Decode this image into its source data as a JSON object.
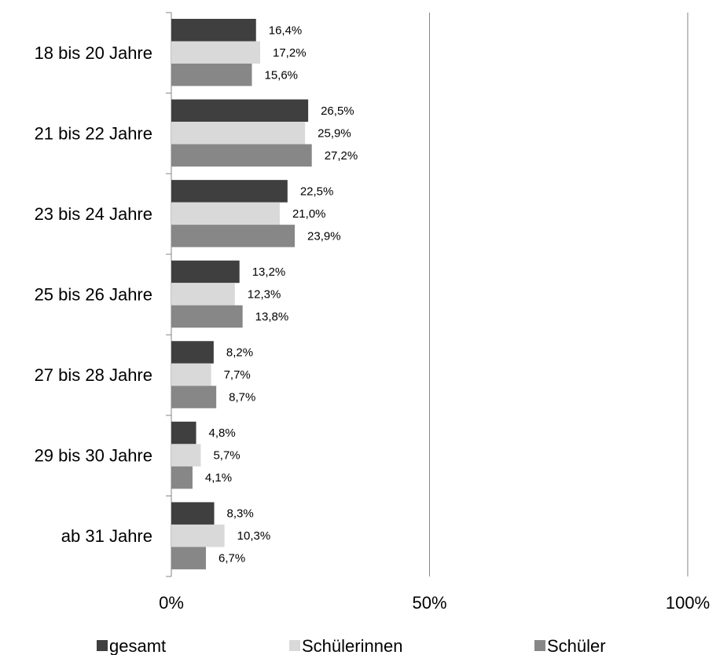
{
  "chart_data": {
    "type": "bar",
    "orientation": "horizontal",
    "categories": [
      "18 bis 20 Jahre",
      "21 bis 22 Jahre",
      "23 bis 24 Jahre",
      "25 bis 26 Jahre",
      "27 bis 28 Jahre",
      "29 bis 30 Jahre",
      "ab 31 Jahre"
    ],
    "series": [
      {
        "name": "gesamt",
        "color": "#3f3f3f",
        "values": [
          16.4,
          26.5,
          22.5,
          13.2,
          8.2,
          4.8,
          8.3
        ],
        "labels": [
          "16,4%",
          "26,5%",
          "22,5%",
          "13,2%",
          "8,2%",
          "4,8%",
          "8,3%"
        ]
      },
      {
        "name": "Schülerinnen",
        "color": "#d9d9d9",
        "values": [
          17.2,
          25.9,
          21.0,
          12.3,
          7.7,
          5.7,
          10.3
        ],
        "labels": [
          "17,2%",
          "25,9%",
          "21,0%",
          "12,3%",
          "7,7%",
          "5,7%",
          "10,3%"
        ]
      },
      {
        "name": "Schüler",
        "color": "#878787",
        "values": [
          15.6,
          27.2,
          23.9,
          13.8,
          8.7,
          4.1,
          6.7
        ],
        "labels": [
          "15,6%",
          "27,2%",
          "23,9%",
          "13,8%",
          "8,7%",
          "4,1%",
          "6,7%"
        ]
      }
    ],
    "x_ticks": [
      0,
      50,
      100
    ],
    "x_tick_labels": [
      "0%",
      "50%",
      "100%"
    ],
    "xlim": [
      0,
      100
    ],
    "grid": true,
    "legend_position": "bottom",
    "title": "",
    "xlabel": "",
    "ylabel": ""
  }
}
